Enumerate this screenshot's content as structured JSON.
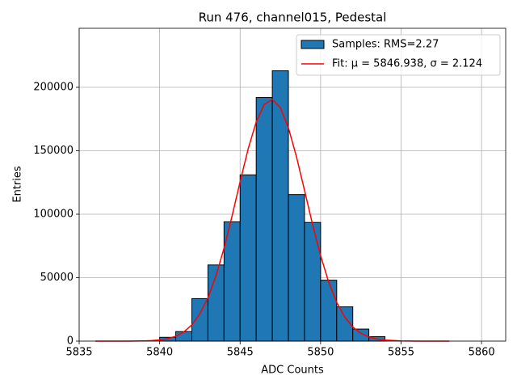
{
  "chart_data": {
    "type": "histogram",
    "title": "Run 476, channel015, Pedestal",
    "x_label": "ADC Counts",
    "y_label": "Entries",
    "bins": [
      5840,
      5841,
      5842,
      5843,
      5844,
      5845,
      5846,
      5847,
      5848,
      5849,
      5850,
      5851,
      5852,
      5853,
      5854
    ],
    "series": [
      {
        "name": "Samples: RMS=2.27",
        "color": "#1f77b4",
        "edgecolor": "#000000",
        "values": [
          3000,
          7500,
          33500,
          60000,
          94000,
          131000,
          192000,
          213000,
          115500,
          93500,
          48000,
          27000,
          9500,
          3500
        ]
      },
      {
        "name": "Fit: μ = 5846.938, σ = 2.124",
        "type": "line",
        "color": "#ff0000",
        "x": [
          5836,
          5837,
          5838,
          5838.5,
          5839,
          5839.5,
          5840,
          5840.5,
          5841,
          5841.5,
          5842,
          5842.5,
          5843,
          5843.5,
          5844,
          5844.5,
          5845,
          5845.5,
          5846,
          5846.5,
          5847,
          5847.5,
          5848,
          5848.5,
          5849,
          5849.5,
          5850,
          5850.5,
          5851,
          5851.5,
          5852,
          5852.5,
          5853,
          5853.5,
          5854,
          5855,
          5856,
          5857,
          5858
        ],
        "values": [
          0,
          3,
          27,
          71,
          177,
          414,
          918,
          1926,
          3825,
          7190,
          12780,
          21470,
          34140,
          51400,
          73190,
          98590,
          125640,
          151490,
          172800,
          186500,
          190420,
          183950,
          168120,
          145370,
          118930,
          92030,
          67400,
          46690,
          30590,
          18970,
          11130,
          6180,
          3244,
          1612,
          758,
          142,
          21,
          2,
          0
        ]
      }
    ],
    "xlim": [
      5835,
      5861.5
    ],
    "ylim": [
      0,
      246500
    ],
    "xticks": [
      5835,
      5840,
      5845,
      5850,
      5855,
      5860
    ],
    "yticks": [
      0,
      50000,
      100000,
      150000,
      200000
    ],
    "grid": true,
    "legend": "upper right"
  }
}
